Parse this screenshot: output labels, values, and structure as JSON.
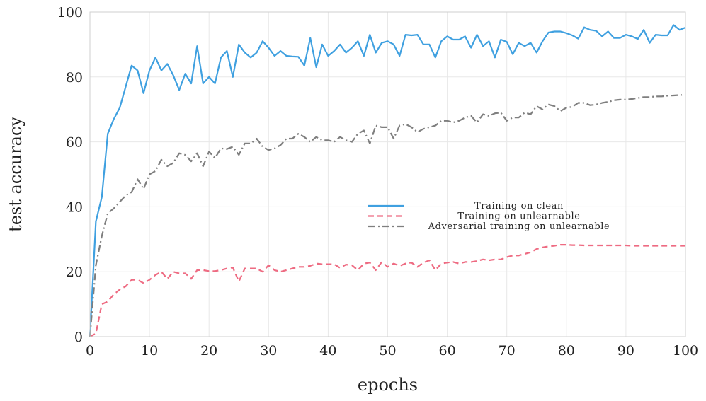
{
  "chart_data": {
    "type": "line",
    "xlabel": "epochs",
    "ylabel": "test accuracy",
    "xlim": [
      0,
      100
    ],
    "ylim": [
      0,
      100
    ],
    "xticks": [
      0,
      10,
      20,
      30,
      40,
      50,
      60,
      70,
      80,
      90,
      100
    ],
    "yticks": [
      0,
      20,
      40,
      60,
      80,
      100
    ],
    "grid": true,
    "legend_position": "center-right",
    "x": [
      0,
      1,
      2,
      3,
      4,
      5,
      6,
      7,
      8,
      9,
      10,
      11,
      12,
      13,
      14,
      15,
      16,
      17,
      18,
      19,
      20,
      21,
      22,
      23,
      24,
      25,
      26,
      27,
      28,
      29,
      30,
      31,
      32,
      33,
      34,
      35,
      36,
      37,
      38,
      39,
      40,
      41,
      42,
      43,
      44,
      45,
      46,
      47,
      48,
      49,
      50,
      51,
      52,
      53,
      54,
      55,
      56,
      57,
      58,
      59,
      60,
      61,
      62,
      63,
      64,
      65,
      66,
      67,
      68,
      69,
      70,
      71,
      72,
      73,
      74,
      75,
      76,
      77,
      78,
      79,
      80,
      81,
      82,
      83,
      84,
      85,
      86,
      87,
      88,
      89,
      90,
      91,
      92,
      93,
      94,
      95,
      96,
      97,
      98,
      99,
      100
    ],
    "series": [
      {
        "name": "Training on clean",
        "color": "#3fa0e0",
        "style": "solid",
        "values": [
          0,
          35.5,
          43,
          62.5,
          67,
          70.5,
          77,
          83.5,
          82,
          75,
          82,
          86,
          82,
          84,
          80.5,
          76,
          81,
          78,
          89.5,
          78,
          80,
          78,
          86,
          88,
          80,
          90,
          87.5,
          86,
          87.5,
          91,
          89,
          86.5,
          88,
          86.5,
          86.3,
          86.2,
          83.5,
          92,
          83,
          90,
          86.5,
          88,
          90,
          87.5,
          89,
          91,
          86.5,
          93,
          87.5,
          90.5,
          91,
          90,
          86.5,
          93,
          92.8,
          93,
          90,
          90,
          86,
          91,
          92.5,
          91.5,
          91.5,
          92.5,
          89,
          93,
          89.5,
          91,
          86,
          91.5,
          90.8,
          87,
          90.5,
          89.5,
          90.5,
          87.5,
          91,
          93.7,
          94,
          94,
          93.5,
          92.8,
          91.8,
          95.3,
          94.5,
          94.2,
          92.5,
          94,
          92,
          92,
          93,
          92.5,
          91.7,
          94.5,
          90.5,
          93,
          92.8,
          92.8,
          96,
          94.5,
          95.2
        ]
      },
      {
        "name": "Training on unlearnable",
        "color": "#ee6b82",
        "style": "dashed",
        "values": [
          0,
          1,
          10,
          10.8,
          13,
          14.5,
          15.5,
          17.5,
          17.5,
          16.5,
          17.5,
          19,
          20,
          17.8,
          20,
          19.5,
          19.5,
          17.8,
          20.5,
          20.5,
          20.2,
          20.2,
          20.5,
          21,
          21.3,
          17,
          21,
          21,
          21,
          20,
          22,
          20.5,
          20,
          20.5,
          21,
          21.5,
          21.5,
          21.8,
          22.5,
          22.3,
          22.3,
          22.3,
          21.2,
          22.2,
          22,
          20.5,
          22.5,
          22.8,
          20.5,
          23,
          21.5,
          22.5,
          21.8,
          22.5,
          22.8,
          21.5,
          22.8,
          23.5,
          20.5,
          22.5,
          22.8,
          23,
          22.5,
          23,
          23,
          23.3,
          23.8,
          23.5,
          23.8,
          23.8,
          24.5,
          25,
          25,
          25.5,
          26,
          27,
          27.5,
          27.8,
          28,
          28.3,
          28.3,
          28.2,
          28.2,
          28.1,
          28.1,
          28.1,
          28.1,
          28.1,
          28.1,
          28.1,
          28.1,
          28,
          28,
          28,
          28,
          28,
          28,
          28,
          28,
          28,
          28
        ]
      },
      {
        "name": "Adversarial training on unlearnable",
        "color": "#7f7f7f",
        "style": "dashdot",
        "values": [
          0,
          22,
          31,
          38,
          39.5,
          41.5,
          43.5,
          44.5,
          48.5,
          45.5,
          50,
          51,
          54.5,
          52.5,
          53.5,
          56.5,
          56,
          54,
          56.5,
          52.5,
          57,
          55,
          58,
          57.8,
          58.5,
          56,
          59.5,
          59.5,
          61,
          58.5,
          57.5,
          58,
          59,
          61,
          61,
          62.5,
          61.5,
          60,
          61.5,
          60.5,
          60.5,
          60,
          61.5,
          60.5,
          60,
          62.5,
          63.5,
          59.5,
          65,
          64.5,
          64.5,
          61,
          65,
          65.5,
          64.5,
          63,
          64,
          64.5,
          65,
          66.5,
          66.5,
          66,
          66.5,
          67.5,
          68,
          66,
          68.5,
          68,
          68.8,
          69,
          66.5,
          67.5,
          67.5,
          69,
          68.5,
          71,
          70,
          71.5,
          71,
          69.5,
          70.5,
          70.8,
          72,
          72,
          71.3,
          71.5,
          72,
          72.3,
          72.8,
          73,
          73,
          73.2,
          73.5,
          73.8,
          73.8,
          74,
          74,
          74.2,
          74.3,
          74.4,
          74.5
        ]
      }
    ]
  }
}
